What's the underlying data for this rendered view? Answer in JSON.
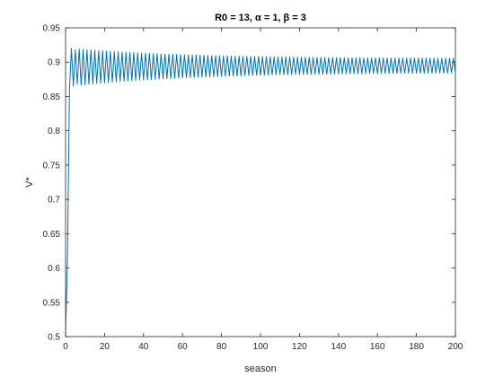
{
  "chart_data": {
    "type": "line",
    "title": "R0 = 13, α = 1, β = 3",
    "xlabel": "season",
    "ylabel": "V*",
    "xlim": [
      0,
      200
    ],
    "ylim": [
      0.5,
      0.95
    ],
    "xticks": [
      "0",
      "20",
      "40",
      "60",
      "80",
      "100",
      "120",
      "140",
      "160",
      "180",
      "200"
    ],
    "yticks": [
      "0.5",
      "0.55",
      "0.6",
      "0.65",
      "0.7",
      "0.75",
      "0.8",
      "0.85",
      "0.9",
      "0.95"
    ],
    "grid": false,
    "series": [
      {
        "color": "#0072BD",
        "description": "period-2 oscillation around 0.895 with slowly decaying amplitude",
        "initial_points": [
          [
            0,
            0.5
          ],
          [
            1,
            0.62
          ],
          [
            2,
            0.86
          ],
          [
            3,
            0.92
          ],
          [
            4,
            0.865
          ],
          [
            5,
            0.918
          ],
          [
            6,
            0.868
          ]
        ],
        "oscillation": {
          "start_season": 3,
          "end_season": 200,
          "period": 2,
          "upper_start": 0.92,
          "lower_start": 0.865,
          "upper_end": 0.905,
          "lower_end": 0.885
        }
      }
    ]
  }
}
